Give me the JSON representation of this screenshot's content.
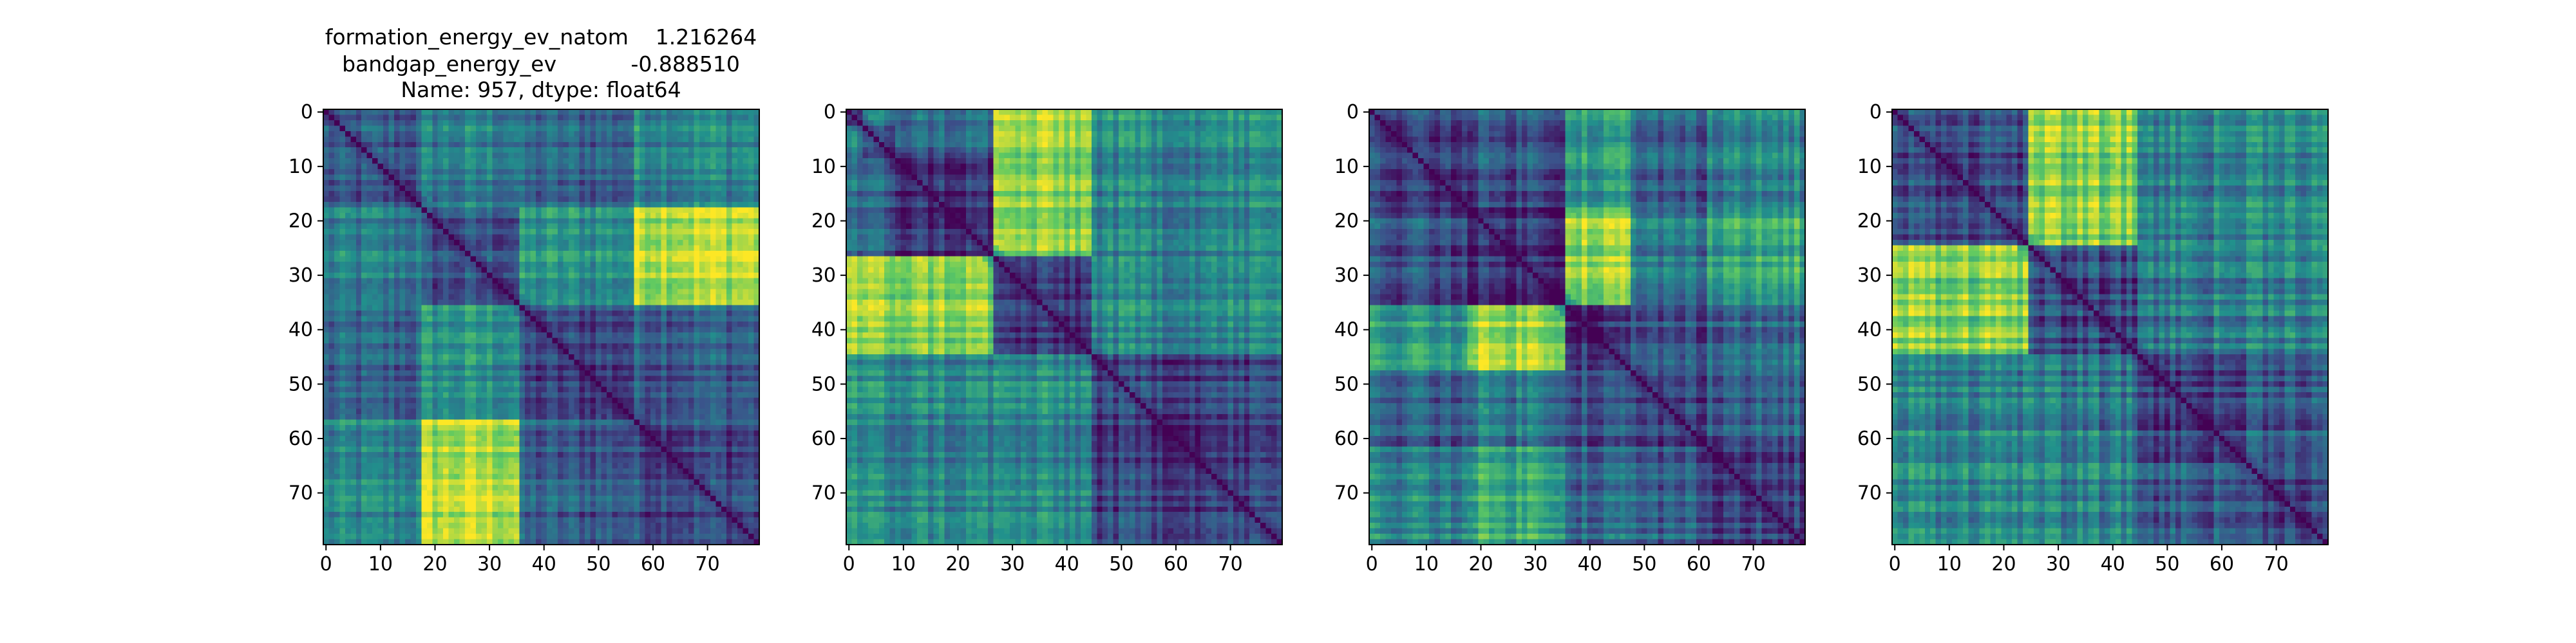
{
  "title_lines": [
    "formation_energy_ev_natom    1.216264",
    "bandgap_energy_ev           -0.888510",
    "Name: 957, dtype: float64"
  ],
  "colormap": [
    "#440154",
    "#3b528b",
    "#21918c",
    "#5ec962",
    "#fde725"
  ],
  "chart_data": [
    {
      "type": "heatmap",
      "title": "",
      "xlabel": "",
      "ylabel": "",
      "n": 80,
      "xlim": [
        0,
        79
      ],
      "ylim": [
        79,
        0
      ],
      "xticks": [
        0,
        10,
        20,
        30,
        40,
        50,
        60,
        70
      ],
      "yticks": [
        0,
        10,
        20,
        30,
        40,
        50,
        60,
        70
      ],
      "block_bounds": [
        0,
        18,
        36,
        57,
        80
      ],
      "block_levels": [
        [
          0.25,
          0.4,
          0.3,
          0.45
        ],
        [
          0.4,
          0.25,
          0.5,
          0.9
        ],
        [
          0.3,
          0.5,
          0.2,
          0.3
        ],
        [
          0.45,
          0.9,
          0.3,
          0.25
        ]
      ]
    },
    {
      "type": "heatmap",
      "title": "",
      "xlabel": "",
      "ylabel": "",
      "n": 80,
      "xlim": [
        0,
        79
      ],
      "ylim": [
        79,
        0
      ],
      "xticks": [
        0,
        10,
        20,
        30,
        40,
        50,
        60,
        70
      ],
      "yticks": [
        0,
        10,
        20,
        30,
        40,
        50,
        60,
        70
      ],
      "block_bounds": [
        0,
        3,
        9,
        27,
        45,
        80
      ],
      "block_levels": [
        [
          0.2,
          0.4,
          0.35,
          0.85,
          0.5
        ],
        [
          0.4,
          0.2,
          0.3,
          0.8,
          0.45
        ],
        [
          0.35,
          0.3,
          0.15,
          0.8,
          0.45
        ],
        [
          0.85,
          0.8,
          0.8,
          0.15,
          0.45
        ],
        [
          0.5,
          0.45,
          0.45,
          0.45,
          0.2
        ]
      ]
    },
    {
      "type": "heatmap",
      "title": "",
      "xlabel": "",
      "ylabel": "",
      "n": 80,
      "xlim": [
        0,
        79
      ],
      "ylim": [
        79,
        0
      ],
      "xticks": [
        0,
        10,
        20,
        30,
        40,
        50,
        60,
        70
      ],
      "yticks": [
        0,
        10,
        20,
        30,
        40,
        50,
        60,
        70
      ],
      "block_bounds": [
        0,
        18,
        36,
        48,
        62,
        80
      ],
      "block_levels": [
        [
          0.2,
          0.25,
          0.55,
          0.3,
          0.45
        ],
        [
          0.25,
          0.15,
          0.85,
          0.4,
          0.6
        ],
        [
          0.55,
          0.85,
          0.15,
          0.25,
          0.35
        ],
        [
          0.3,
          0.4,
          0.25,
          0.2,
          0.3
        ],
        [
          0.45,
          0.6,
          0.35,
          0.3,
          0.2
        ]
      ]
    },
    {
      "type": "heatmap",
      "title": "",
      "xlabel": "",
      "ylabel": "",
      "n": 80,
      "xlim": [
        0,
        79
      ],
      "ylim": [
        79,
        0
      ],
      "xticks": [
        0,
        10,
        20,
        30,
        40,
        50,
        60,
        70
      ],
      "yticks": [
        0,
        10,
        20,
        30,
        40,
        50,
        60,
        70
      ],
      "block_bounds": [
        0,
        25,
        45,
        65,
        80
      ],
      "block_levels": [
        [
          0.25,
          0.8,
          0.45,
          0.5
        ],
        [
          0.8,
          0.2,
          0.4,
          0.45
        ],
        [
          0.45,
          0.4,
          0.2,
          0.3
        ],
        [
          0.5,
          0.45,
          0.3,
          0.25
        ]
      ]
    }
  ]
}
